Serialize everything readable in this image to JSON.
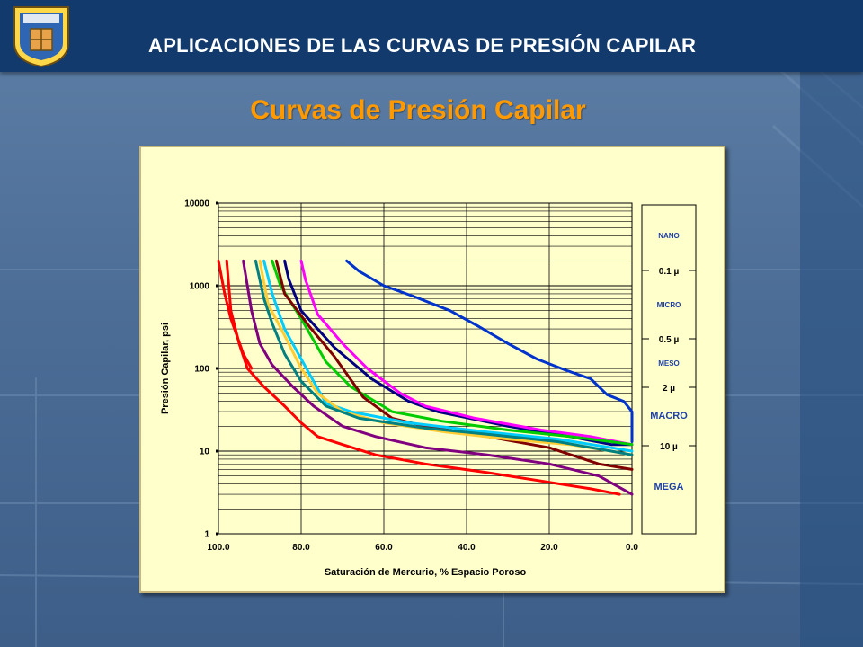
{
  "header": {
    "title": "APLICACIONES DE LAS CURVAS DE PRESIÓN CAPILAR"
  },
  "slide": {
    "title": "Curvas de Presión Capilar"
  },
  "colors": {
    "header_bg": "#123a6c",
    "title": "#ff9900",
    "panel_bg": "#ffffcc",
    "scale_text": "#1e3fa8"
  },
  "logo": {
    "icon": "university-seal-icon"
  },
  "chart_data": {
    "type": "line",
    "xlabel": "Saturación de Mercurio, % Espacio Poroso",
    "ylabel": "Presión Capilar, psi",
    "xlim": [
      100,
      0
    ],
    "ylim": [
      1,
      10000
    ],
    "yscale": "log",
    "grid": true,
    "x_ticks": [
      "100.0",
      "80.0",
      "60.0",
      "40.0",
      "20.0",
      "0.0"
    ],
    "y_ticks": [
      "1",
      "10",
      "100",
      "1000",
      "10000"
    ],
    "series": [
      {
        "color": "#0033cc",
        "points": [
          [
            69,
            2000
          ],
          [
            66,
            1500
          ],
          [
            60,
            1000
          ],
          [
            53,
            750
          ],
          [
            44,
            500
          ],
          [
            37,
            320
          ],
          [
            30,
            200
          ],
          [
            23,
            130
          ],
          [
            16,
            95
          ],
          [
            10,
            75
          ],
          [
            6,
            48
          ],
          [
            2,
            40
          ],
          [
            0,
            30
          ],
          [
            0,
            20
          ],
          [
            0,
            13
          ]
        ]
      },
      {
        "color": "#000080",
        "points": [
          [
            84,
            2000
          ],
          [
            83,
            1200
          ],
          [
            80,
            500
          ],
          [
            72,
            180
          ],
          [
            63,
            75
          ],
          [
            54,
            40
          ],
          [
            47,
            30
          ],
          [
            30,
            20
          ],
          [
            15,
            15
          ],
          [
            5,
            12
          ],
          [
            0,
            12
          ]
        ]
      },
      {
        "color": "#ff00ff",
        "points": [
          [
            80,
            2000
          ],
          [
            79,
            1200
          ],
          [
            76,
            450
          ],
          [
            70,
            200
          ],
          [
            64,
            100
          ],
          [
            56,
            50
          ],
          [
            50,
            35
          ],
          [
            38,
            25
          ],
          [
            22,
            18
          ],
          [
            10,
            15
          ],
          [
            0,
            12
          ]
        ]
      },
      {
        "color": "#00cc00",
        "points": [
          [
            87,
            2000
          ],
          [
            85,
            1000
          ],
          [
            80,
            400
          ],
          [
            74,
            120
          ],
          [
            68,
            60
          ],
          [
            58,
            30
          ],
          [
            46,
            23
          ],
          [
            30,
            18
          ],
          [
            15,
            15
          ],
          [
            5,
            13
          ],
          [
            0,
            12
          ]
        ]
      },
      {
        "color": "#800000",
        "points": [
          [
            86,
            2000
          ],
          [
            84,
            800
          ],
          [
            78,
            320
          ],
          [
            72,
            140
          ],
          [
            65,
            45
          ],
          [
            58,
            25
          ],
          [
            50,
            20
          ],
          [
            35,
            15
          ],
          [
            20,
            11
          ],
          [
            8,
            7
          ],
          [
            0,
            6
          ]
        ]
      },
      {
        "color": "#00ccff",
        "points": [
          [
            89,
            2000
          ],
          [
            87,
            800
          ],
          [
            84,
            300
          ],
          [
            80,
            130
          ],
          [
            77,
            70
          ],
          [
            74,
            38
          ],
          [
            68,
            30
          ],
          [
            54,
            22
          ],
          [
            35,
            17
          ],
          [
            18,
            14
          ],
          [
            5,
            11
          ],
          [
            0,
            10
          ]
        ]
      },
      {
        "color": "#ffcc33",
        "points": [
          [
            90,
            2000
          ],
          [
            88,
            600
          ],
          [
            84,
            250
          ],
          [
            80,
            100
          ],
          [
            76,
            50
          ],
          [
            70,
            30
          ],
          [
            60,
            22
          ],
          [
            45,
            17
          ],
          [
            30,
            14
          ],
          [
            15,
            12
          ],
          [
            5,
            10
          ],
          [
            0,
            9
          ]
        ]
      },
      {
        "color": "#008080",
        "points": [
          [
            91,
            2000
          ],
          [
            89,
            700
          ],
          [
            87,
            350
          ],
          [
            84,
            150
          ],
          [
            80,
            70
          ],
          [
            74,
            35
          ],
          [
            66,
            25
          ],
          [
            50,
            19
          ],
          [
            35,
            16
          ],
          [
            18,
            13
          ],
          [
            5,
            10
          ],
          [
            0,
            9
          ]
        ]
      },
      {
        "color": "#800080",
        "points": [
          [
            94,
            2000
          ],
          [
            92,
            500
          ],
          [
            90,
            200
          ],
          [
            87,
            110
          ],
          [
            82,
            60
          ],
          [
            77,
            35
          ],
          [
            70,
            20
          ],
          [
            62,
            15
          ],
          [
            50,
            11
          ],
          [
            35,
            9
          ],
          [
            20,
            7
          ],
          [
            8,
            5
          ],
          [
            0,
            3
          ]
        ]
      },
      {
        "color": "#ff0000",
        "points": [
          [
            98,
            2000
          ],
          [
            97,
            500
          ],
          [
            95,
            200
          ],
          [
            93,
            100
          ],
          [
            89,
            60
          ],
          [
            84,
            35
          ],
          [
            80,
            22
          ],
          [
            76,
            15
          ],
          [
            70,
            12
          ],
          [
            62,
            9
          ],
          [
            50,
            7
          ],
          [
            35,
            5.5
          ],
          [
            20,
            4.2
          ],
          [
            10,
            3.5
          ],
          [
            3,
            3
          ]
        ]
      },
      {
        "color": "#ff0000",
        "points": [
          [
            100,
            2000
          ],
          [
            98.5,
            800
          ],
          [
            97,
            400
          ],
          [
            94,
            150
          ],
          [
            92,
            100
          ]
        ]
      }
    ]
  },
  "pore_scale": {
    "boundaries": [
      "0.1 µ",
      "0.5 µ",
      "2 µ",
      "10 µ"
    ],
    "zones": [
      "NANO",
      "MICRO",
      "MESO",
      "MACRO",
      "MEGA"
    ]
  }
}
